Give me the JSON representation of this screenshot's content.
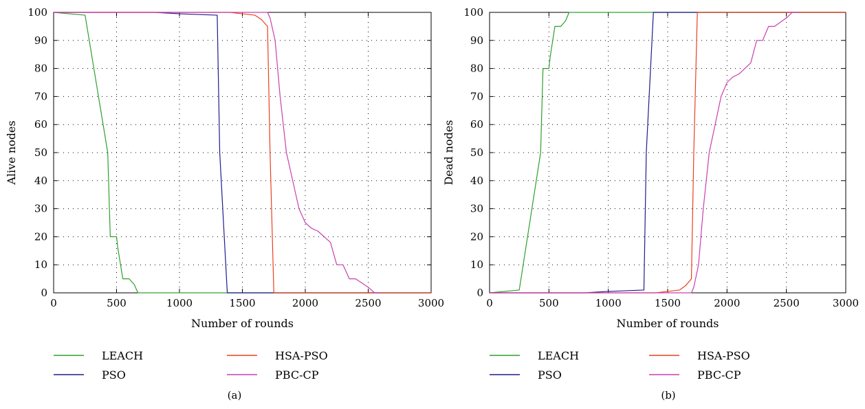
{
  "chart_data": [
    {
      "type": "line",
      "caption": "(a)",
      "xlabel": "Number of rounds",
      "ylabel": "Alive nodes",
      "xlim": [
        0,
        3000
      ],
      "ylim": [
        0,
        100
      ],
      "xticks": [
        0,
        500,
        1000,
        1500,
        2000,
        2500,
        3000
      ],
      "yticks": [
        0,
        10,
        20,
        30,
        40,
        50,
        60,
        70,
        80,
        90,
        100
      ],
      "grid": true,
      "legend": "bottom",
      "series": [
        {
          "name": "LEACH",
          "color": "#2ca02c",
          "x": [
            0,
            250,
            430,
            450,
            500,
            510,
            550,
            600,
            640,
            670,
            3000
          ],
          "y": [
            100,
            99,
            50,
            20,
            20,
            16,
            5,
            5,
            3,
            0,
            0
          ]
        },
        {
          "name": "PSO",
          "color": "#1f1a8c",
          "x": [
            0,
            800,
            1000,
            1300,
            1320,
            1380,
            3000
          ],
          "y": [
            100,
            100,
            99.5,
            99,
            50,
            0,
            0
          ]
        },
        {
          "name": "HSA-PSO",
          "color": "#e8401c",
          "x": [
            0,
            1400,
            1500,
            1600,
            1650,
            1700,
            1720,
            1750,
            3000
          ],
          "y": [
            100,
            100,
            99.5,
            99,
            97.5,
            95,
            50,
            0,
            0
          ]
        },
        {
          "name": "PBC-CP",
          "color": "#c93fb0",
          "x": [
            0,
            1700,
            1720,
            1760,
            1800,
            1850,
            1950,
            2000,
            2050,
            2100,
            2200,
            2250,
            2300,
            2350,
            2400,
            2450,
            2500,
            2550,
            2600
          ],
          "y": [
            100,
            100,
            98,
            90,
            70,
            50,
            30,
            25,
            23,
            22,
            18,
            10,
            10,
            5,
            5,
            3.5,
            2,
            0,
            0
          ]
        }
      ]
    },
    {
      "type": "line",
      "caption": "(b)",
      "xlabel": "Number of rounds",
      "ylabel": "Dead nodes",
      "xlim": [
        0,
        3000
      ],
      "ylim": [
        0,
        100
      ],
      "xticks": [
        0,
        500,
        1000,
        1500,
        2000,
        2500,
        3000
      ],
      "yticks": [
        0,
        10,
        20,
        30,
        40,
        50,
        60,
        70,
        80,
        90,
        100
      ],
      "grid": true,
      "legend": "bottom",
      "series": [
        {
          "name": "LEACH",
          "color": "#2ca02c",
          "x": [
            0,
            250,
            430,
            450,
            500,
            510,
            550,
            600,
            640,
            670,
            3000
          ],
          "y": [
            0,
            1,
            50,
            80,
            80,
            84,
            95,
            95,
            97,
            100,
            100
          ]
        },
        {
          "name": "PSO",
          "color": "#1f1a8c",
          "x": [
            0,
            800,
            1000,
            1300,
            1320,
            1380,
            3000
          ],
          "y": [
            0,
            0,
            0.5,
            1,
            50,
            100,
            100
          ]
        },
        {
          "name": "HSA-PSO",
          "color": "#e8401c",
          "x": [
            0,
            1400,
            1500,
            1600,
            1650,
            1700,
            1720,
            1750,
            3000
          ],
          "y": [
            0,
            0,
            0.5,
            1,
            2.5,
            5,
            50,
            100,
            100
          ]
        },
        {
          "name": "PBC-CP",
          "color": "#c93fb0",
          "x": [
            0,
            1700,
            1720,
            1760,
            1800,
            1850,
            1950,
            2000,
            2050,
            2100,
            2200,
            2250,
            2300,
            2350,
            2400,
            2450,
            2500,
            2550,
            2600
          ],
          "y": [
            0,
            0,
            2,
            10,
            30,
            50,
            70,
            75,
            77,
            78,
            82,
            90,
            90,
            95,
            95,
            96.5,
            98,
            100,
            100
          ]
        }
      ]
    }
  ]
}
